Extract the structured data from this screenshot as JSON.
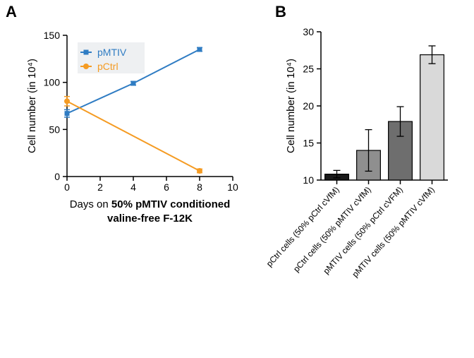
{
  "panelA": {
    "label": "A",
    "type": "line",
    "x_axis": {
      "title_prefix": "Days on ",
      "title_bold": "50% pMTIV conditioned",
      "title_line2": "valine-free F-12K",
      "lim": [
        0,
        10
      ],
      "ticks": [
        0,
        2,
        4,
        6,
        8,
        10
      ],
      "tick_fontsize": 14,
      "title_fontsize": 15
    },
    "y_axis": {
      "title": "Cell number (in 10⁴)",
      "lim": [
        0,
        150
      ],
      "ticks": [
        0,
        50,
        100,
        150
      ],
      "tick_fontsize": 14,
      "title_fontsize": 15
    },
    "series": [
      {
        "name": "pMTIV",
        "color": "#2f7cc3",
        "marker": "square",
        "marker_size": 7,
        "line_width": 2,
        "x": [
          0,
          4,
          8
        ],
        "y": [
          67,
          99,
          135
        ],
        "err_y": [
          4,
          2,
          2
        ]
      },
      {
        "name": "pCtrl",
        "color": "#f59b22",
        "marker": "circle",
        "marker_size": 7,
        "line_width": 2,
        "x": [
          0,
          8
        ],
        "y": [
          80,
          6
        ],
        "err_y": [
          5,
          2
        ]
      }
    ],
    "legend": {
      "background": "#eef0f2",
      "position": "top-left-inside",
      "fontsize": 14
    },
    "background_color": "#ffffff"
  },
  "panelB": {
    "label": "B",
    "type": "bar",
    "y_axis": {
      "title": "Cell number (in 10⁴)",
      "lim": [
        10,
        30
      ],
      "ticks": [
        10,
        15,
        20,
        25,
        30
      ],
      "tick_fontsize": 14,
      "title_fontsize": 15
    },
    "bars": [
      {
        "label": "pCtrl cells (50% pCtrl cVfM)",
        "value": 10.8,
        "err": 0.5,
        "fill": "#1a1a1a"
      },
      {
        "label": "pCtrl cells (50% pMTIV cVfM)",
        "value": 14.0,
        "err": 2.8,
        "fill": "#8f8f8f"
      },
      {
        "label": "pMTIV cells (50% pCtrl cVFM)",
        "value": 17.9,
        "err": 2.0,
        "fill": "#6e6e6e"
      },
      {
        "label": "pMTIV cells (50% pMTIV cVfM)",
        "value": 26.9,
        "err": 1.2,
        "fill": "#d9d9d9"
      }
    ],
    "bar_width_ratio": 0.75,
    "x_label_fontsize": 12,
    "x_label_rotation_deg": 48,
    "background_color": "#ffffff"
  }
}
